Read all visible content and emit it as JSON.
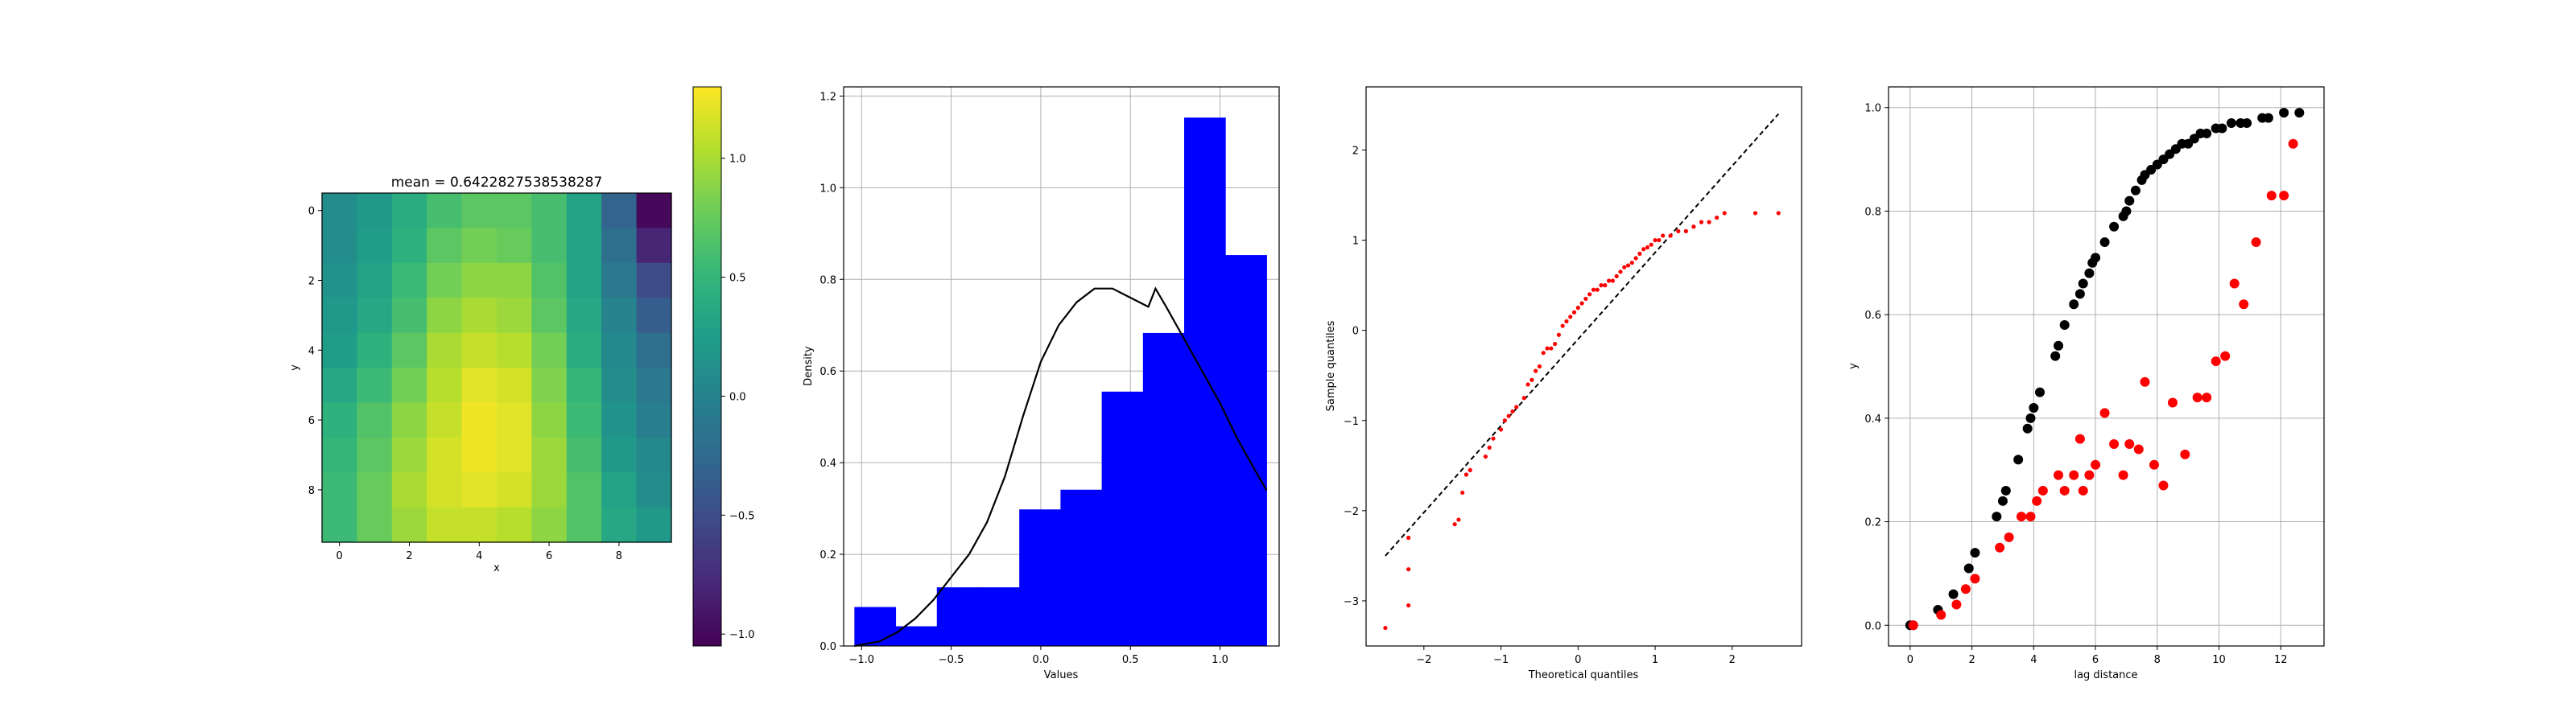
{
  "chart_data": [
    {
      "type": "heatmap",
      "title": "mean = 0.6422827538538287",
      "xlabel": "x",
      "ylabel": "y",
      "colormap": "viridis",
      "vmin": -1.05,
      "vmax": 1.3,
      "x_ticks": [
        "0",
        "2",
        "4",
        "6",
        "8"
      ],
      "y_ticks": [
        "0",
        "2",
        "4",
        "6",
        "8"
      ],
      "colorbar_ticks": [
        "1.0",
        "0.5",
        "0.0",
        "−0.5",
        "−1.0"
      ],
      "colorbar_tick_values": [
        1.0,
        0.5,
        0.0,
        -0.5,
        -1.0
      ],
      "values": [
        [
          0.1,
          0.2,
          0.4,
          0.6,
          0.7,
          0.7,
          0.6,
          0.3,
          -0.3,
          -1.0
        ],
        [
          0.1,
          0.25,
          0.45,
          0.7,
          0.8,
          0.75,
          0.6,
          0.3,
          -0.2,
          -0.8
        ],
        [
          0.15,
          0.3,
          0.55,
          0.8,
          0.9,
          0.9,
          0.65,
          0.3,
          -0.1,
          -0.5
        ],
        [
          0.2,
          0.35,
          0.6,
          0.9,
          1.0,
          0.95,
          0.7,
          0.35,
          0.0,
          -0.35
        ],
        [
          0.25,
          0.45,
          0.7,
          1.0,
          1.1,
          1.05,
          0.8,
          0.4,
          0.05,
          -0.2
        ],
        [
          0.35,
          0.55,
          0.8,
          1.05,
          1.2,
          1.15,
          0.85,
          0.5,
          0.1,
          -0.1
        ],
        [
          0.45,
          0.65,
          0.9,
          1.1,
          1.25,
          1.2,
          0.9,
          0.55,
          0.15,
          -0.05
        ],
        [
          0.5,
          0.7,
          0.95,
          1.15,
          1.25,
          1.2,
          0.95,
          0.6,
          0.2,
          0.05
        ],
        [
          0.55,
          0.75,
          1.0,
          1.15,
          1.2,
          1.15,
          0.95,
          0.65,
          0.3,
          0.1
        ],
        [
          0.55,
          0.75,
          0.95,
          1.1,
          1.1,
          1.05,
          0.9,
          0.65,
          0.35,
          0.2
        ]
      ]
    },
    {
      "type": "bar",
      "subtype": "histogram",
      "xlabel": "Values",
      "ylabel": "Density",
      "xlim": [
        -1.1,
        1.33
      ],
      "ylim": [
        0,
        1.22
      ],
      "x_ticks": [
        -1.0,
        -0.5,
        0.0,
        0.5,
        1.0
      ],
      "x_tick_labels": [
        "−1.0",
        "−0.5",
        "0.0",
        "0.5",
        "1.0"
      ],
      "y_ticks": [
        0.0,
        0.2,
        0.4,
        0.6,
        0.8,
        1.0,
        1.2
      ],
      "y_tick_labels": [
        "0.0",
        "0.2",
        "0.4",
        "0.6",
        "0.8",
        "1.0",
        "1.2"
      ],
      "grid": true,
      "bar_color": "#0000ff",
      "bin_edges": [
        -1.04,
        -0.81,
        -0.58,
        -0.35,
        -0.12,
        0.11,
        0.34,
        0.57,
        0.8,
        1.03,
        1.26
      ],
      "densities": [
        0.085,
        0.043,
        0.128,
        0.128,
        0.298,
        0.341,
        0.555,
        0.683,
        1.153,
        0.853
      ],
      "pdf_curve": {
        "color": "#000000",
        "x": [
          -1.04,
          -0.9,
          -0.8,
          -0.7,
          -0.6,
          -0.5,
          -0.4,
          -0.3,
          -0.2,
          -0.1,
          0.0,
          0.1,
          0.2,
          0.3,
          0.4,
          0.5,
          0.6,
          0.64,
          0.7,
          0.8,
          0.9,
          1.0,
          1.1,
          1.2,
          1.26
        ],
        "y": [
          0.0,
          0.01,
          0.03,
          0.06,
          0.1,
          0.15,
          0.2,
          0.27,
          0.37,
          0.5,
          0.62,
          0.7,
          0.75,
          0.78,
          0.78,
          0.76,
          0.74,
          0.78,
          0.74,
          0.67,
          0.6,
          0.53,
          0.45,
          0.38,
          0.34
        ]
      }
    },
    {
      "type": "scatter",
      "subtype": "qq-plot",
      "xlabel": "Theoretical quantiles",
      "ylabel": "Sample quantiles",
      "xlim": [
        -2.75,
        2.9
      ],
      "ylim": [
        -3.5,
        2.7
      ],
      "x_ticks": [
        -2,
        -1,
        0,
        1,
        2
      ],
      "x_tick_labels": [
        "−2",
        "−1",
        "0",
        "1",
        "2"
      ],
      "y_ticks": [
        -3,
        -2,
        -1,
        0,
        1,
        2
      ],
      "y_tick_labels": [
        "−3",
        "−2",
        "−1",
        "0",
        "1",
        "2"
      ],
      "grid": false,
      "point_color": "#ff0000",
      "reference_line": {
        "x": [
          -2.5,
          2.6
        ],
        "y": [
          -2.5,
          2.4
        ],
        "style": "dashed",
        "color": "#000000"
      },
      "points": {
        "x": [
          -2.5,
          -2.2,
          -2.2,
          -2.2,
          -1.6,
          -1.55,
          -1.5,
          -1.45,
          -1.4,
          -1.2,
          -1.15,
          -1.1,
          -1.0,
          -0.95,
          -0.9,
          -0.85,
          -0.8,
          -0.7,
          -0.65,
          -0.6,
          -0.55,
          -0.5,
          -0.45,
          -0.4,
          -0.35,
          -0.3,
          -0.25,
          -0.2,
          -0.15,
          -0.1,
          -0.05,
          0.0,
          0.05,
          0.1,
          0.15,
          0.2,
          0.25,
          0.3,
          0.35,
          0.4,
          0.45,
          0.5,
          0.55,
          0.6,
          0.65,
          0.7,
          0.75,
          0.8,
          0.85,
          0.9,
          0.95,
          1.0,
          1.05,
          1.1,
          1.2,
          1.3,
          1.4,
          1.5,
          1.6,
          1.7,
          1.8,
          1.9,
          2.3,
          2.6
        ],
        "y": [
          -3.3,
          -3.05,
          -2.65,
          -2.3,
          -2.15,
          -2.1,
          -1.8,
          -1.6,
          -1.55,
          -1.4,
          -1.3,
          -1.2,
          -1.1,
          -1.0,
          -0.95,
          -0.9,
          -0.85,
          -0.75,
          -0.6,
          -0.55,
          -0.45,
          -0.4,
          -0.25,
          -0.2,
          -0.2,
          -0.15,
          -0.05,
          0.05,
          0.1,
          0.15,
          0.2,
          0.25,
          0.3,
          0.35,
          0.4,
          0.45,
          0.45,
          0.5,
          0.5,
          0.55,
          0.55,
          0.6,
          0.65,
          0.7,
          0.72,
          0.75,
          0.8,
          0.85,
          0.9,
          0.92,
          0.95,
          1.0,
          1.0,
          1.05,
          1.05,
          1.1,
          1.1,
          1.15,
          1.2,
          1.2,
          1.25,
          1.3,
          1.3,
          1.3
        ]
      }
    },
    {
      "type": "scatter",
      "xlabel": "lag distance",
      "ylabel": "y",
      "xlim": [
        -0.7,
        13.4
      ],
      "ylim": [
        -0.04,
        1.04
      ],
      "x_ticks": [
        0,
        2,
        4,
        6,
        8,
        10,
        12
      ],
      "x_tick_labels": [
        "0",
        "2",
        "4",
        "6",
        "8",
        "10",
        "12"
      ],
      "y_ticks": [
        0.0,
        0.2,
        0.4,
        0.6,
        0.8,
        1.0
      ],
      "y_tick_labels": [
        "0.0",
        "0.2",
        "0.4",
        "0.6",
        "0.8",
        "1.0"
      ],
      "grid": true,
      "series": [
        {
          "color": "#000000",
          "x": [
            0.0,
            0.1,
            0.9,
            1.4,
            1.9,
            2.1,
            2.8,
            3.0,
            3.1,
            3.5,
            3.8,
            3.9,
            4.0,
            4.2,
            4.7,
            4.8,
            5.0,
            5.3,
            5.5,
            5.6,
            5.8,
            5.9,
            6.0,
            6.3,
            6.6,
            6.9,
            7.0,
            7.1,
            7.3,
            7.5,
            7.6,
            7.8,
            8.0,
            8.2,
            8.4,
            8.6,
            8.8,
            9.0,
            9.2,
            9.4,
            9.6,
            9.9,
            10.1,
            10.4,
            10.7,
            10.9,
            11.4,
            11.6,
            12.1,
            12.6
          ],
          "y": [
            0.0,
            0.0,
            0.03,
            0.06,
            0.11,
            0.14,
            0.21,
            0.24,
            0.26,
            0.32,
            0.38,
            0.4,
            0.42,
            0.45,
            0.52,
            0.54,
            0.58,
            0.62,
            0.64,
            0.66,
            0.68,
            0.7,
            0.71,
            0.74,
            0.77,
            0.79,
            0.8,
            0.82,
            0.84,
            0.86,
            0.87,
            0.88,
            0.89,
            0.9,
            0.91,
            0.92,
            0.93,
            0.93,
            0.94,
            0.95,
            0.95,
            0.96,
            0.96,
            0.97,
            0.97,
            0.97,
            0.98,
            0.98,
            0.99,
            0.99
          ]
        },
        {
          "color": "#ff0000",
          "x": [
            0.1,
            1.0,
            1.5,
            1.8,
            2.1,
            2.9,
            3.2,
            3.6,
            3.9,
            4.1,
            4.3,
            4.8,
            5.0,
            5.3,
            5.5,
            5.6,
            5.8,
            6.0,
            6.3,
            6.6,
            6.9,
            7.1,
            7.4,
            7.6,
            7.9,
            8.2,
            8.5,
            8.9,
            9.3,
            9.6,
            9.9,
            10.2,
            10.5,
            10.8,
            11.2,
            11.7,
            12.1,
            12.4
          ],
          "y": [
            0.0,
            0.02,
            0.04,
            0.07,
            0.09,
            0.15,
            0.17,
            0.21,
            0.21,
            0.24,
            0.26,
            0.29,
            0.26,
            0.29,
            0.36,
            0.26,
            0.29,
            0.31,
            0.41,
            0.35,
            0.29,
            0.35,
            0.34,
            0.47,
            0.31,
            0.27,
            0.43,
            0.33,
            0.44,
            0.44,
            0.51,
            0.52,
            0.66,
            0.62,
            0.74,
            0.83,
            0.83,
            0.93
          ]
        }
      ]
    }
  ]
}
